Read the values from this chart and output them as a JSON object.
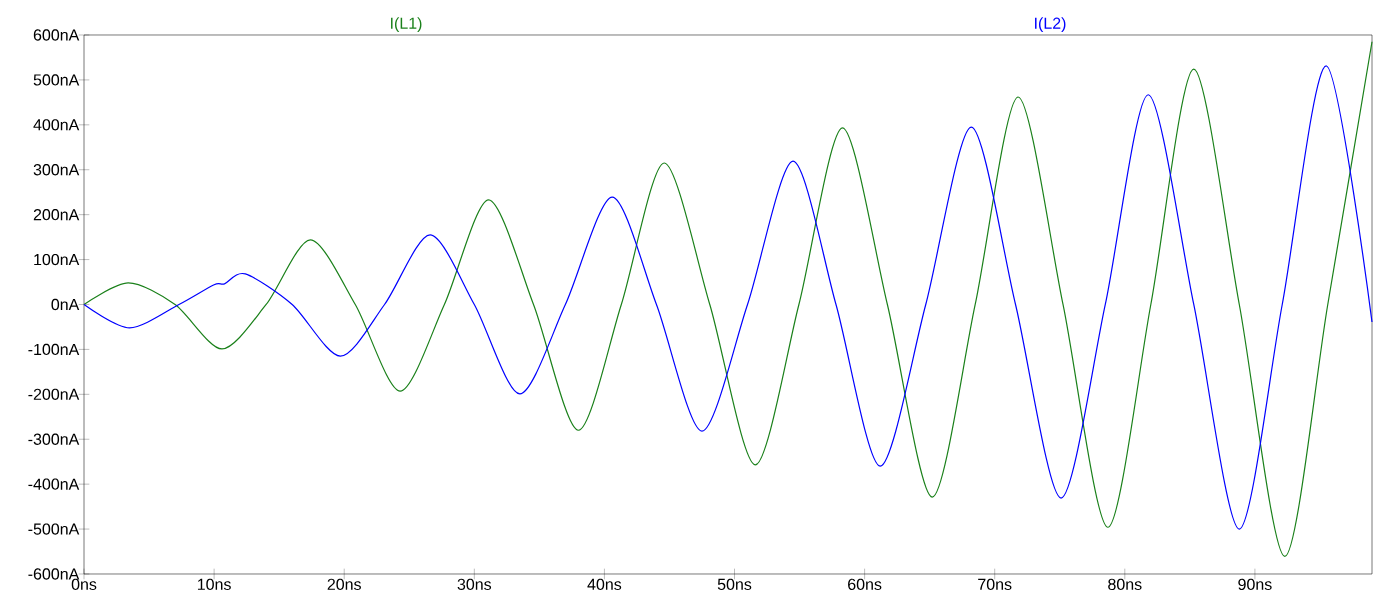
{
  "chart_data": {
    "type": "line",
    "xlim": [
      0,
      99
    ],
    "ylim": [
      -600,
      600
    ],
    "xticks": [
      {
        "value": 0,
        "label": "0ns"
      },
      {
        "value": 10,
        "label": "10ns"
      },
      {
        "value": 20,
        "label": "20ns"
      },
      {
        "value": 30,
        "label": "30ns"
      },
      {
        "value": 40,
        "label": "40ns"
      },
      {
        "value": 50,
        "label": "50ns"
      },
      {
        "value": 60,
        "label": "60ns"
      },
      {
        "value": 70,
        "label": "70ns"
      },
      {
        "value": 80,
        "label": "80ns"
      },
      {
        "value": 90,
        "label": "90ns"
      }
    ],
    "yticks": [
      {
        "value": 600,
        "label": "600nA"
      },
      {
        "value": 500,
        "label": "500nA"
      },
      {
        "value": 400,
        "label": "400nA"
      },
      {
        "value": 300,
        "label": "300nA"
      },
      {
        "value": 200,
        "label": "200nA"
      },
      {
        "value": 100,
        "label": "100nA"
      },
      {
        "value": 0,
        "label": "0nA"
      },
      {
        "value": -100,
        "label": "-100nA"
      },
      {
        "value": -200,
        "label": "-200nA"
      },
      {
        "value": -300,
        "label": "-300nA"
      },
      {
        "value": -400,
        "label": "-400nA"
      },
      {
        "value": -500,
        "label": "-500nA"
      },
      {
        "value": -600,
        "label": "-600nA"
      }
    ],
    "grid": false,
    "marker": "none",
    "line_style": "solid",
    "series": [
      {
        "name": "I(L1)",
        "color": "#1a801a",
        "x": [
          0,
          3.4,
          7.0,
          10.6,
          14.0,
          17.4,
          20.85,
          24.3,
          27.7,
          31.1,
          34.55,
          38.0,
          41.3,
          44.6,
          48.1,
          51.6,
          54.95,
          58.3,
          61.75,
          65.2,
          68.5,
          71.8,
          75.25,
          78.7,
          82.0,
          85.3,
          88.8,
          92.3,
          95.6,
          99
        ],
        "values": [
          0,
          48,
          0,
          -99,
          0,
          144,
          0,
          -193,
          0,
          233,
          0,
          -280,
          0,
          315,
          0,
          -357,
          0,
          393,
          0,
          -429,
          0,
          462,
          0,
          -496,
          0,
          524,
          0,
          -561,
          0,
          585
        ]
      },
      {
        "name": "I(L2)",
        "color": "#0000ff",
        "x": [
          0,
          3.5,
          7.3,
          10.0,
          10.8,
          12.4,
          16.0,
          19.7,
          23.1,
          26.6,
          30.0,
          33.5,
          37.0,
          40.6,
          44.0,
          47.5,
          51.0,
          54.5,
          57.8,
          61.2,
          64.7,
          68.2,
          71.6,
          75.1,
          78.5,
          81.8,
          85.3,
          88.8,
          92.1,
          95.5,
          99
        ],
        "values": [
          0,
          -52,
          0,
          44,
          46,
          68,
          0,
          -115,
          0,
          155,
          0,
          -199,
          0,
          239,
          0,
          -282,
          0,
          319,
          0,
          -360,
          0,
          395,
          0,
          -431,
          0,
          467,
          0,
          -500,
          0,
          531,
          -39
        ]
      }
    ]
  }
}
